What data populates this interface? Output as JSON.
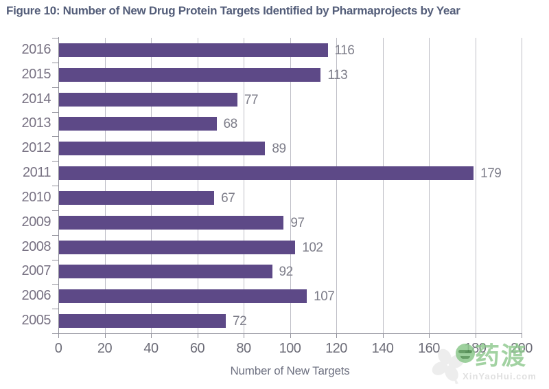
{
  "title": "Figure 10: Number of New Drug Protein Targets Identified by Pharmaprojects by Year",
  "chart_data": {
    "type": "bar",
    "orientation": "horizontal",
    "categories": [
      "2016",
      "2015",
      "2014",
      "2013",
      "2012",
      "2011",
      "2010",
      "2009",
      "2008",
      "2007",
      "2006",
      "2005"
    ],
    "values": [
      116,
      113,
      77,
      68,
      89,
      179,
      67,
      97,
      102,
      92,
      107,
      72
    ],
    "title": "Figure 10: Number of New Drug Protein Targets Identified by Pharmaprojects by Year",
    "xlabel": "Number of New Targets",
    "ylabel": "",
    "xlim": [
      0,
      200
    ],
    "xticks": [
      0,
      20,
      40,
      60,
      80,
      100,
      120,
      140,
      160,
      180,
      200
    ],
    "grid": "vertical-only",
    "value_labels_shown": true,
    "legend": "none",
    "bar_color": "#5d4987"
  },
  "text_colors": {
    "title": "#535d79",
    "year_labels": "#787283",
    "value_labels": "#7d7d89",
    "tick_labels": "#6d6d78",
    "axis_label": "#6e7181"
  },
  "watermark": {
    "brand_text": "药渡",
    "domain_text": "XinYaoHui.com",
    "brand_color": "#8cc88c"
  }
}
